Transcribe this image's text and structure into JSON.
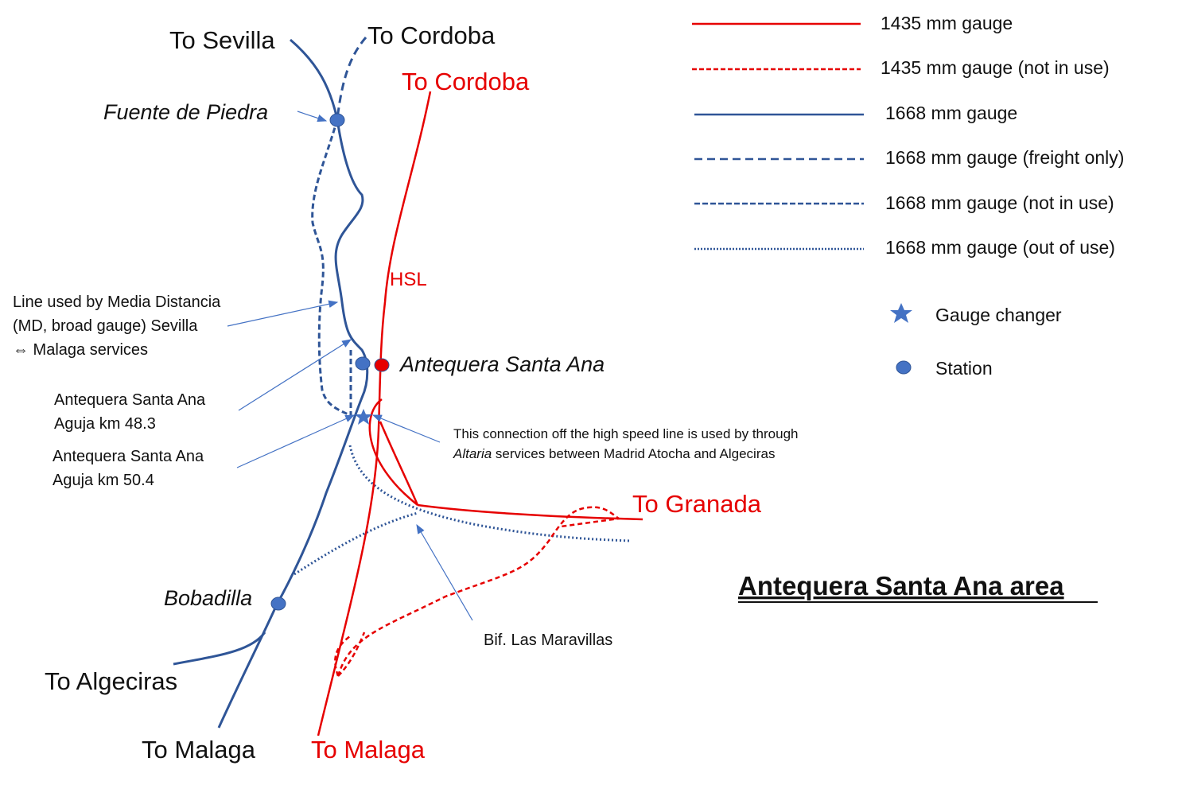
{
  "title": "Antequera Santa Ana area",
  "legend": {
    "lines": [
      "1435 mm gauge",
      "1435 mm gauge (not in use)",
      "1668 mm gauge",
      "1668 mm gauge (freight only)",
      "1668 mm gauge (not in use)",
      "1668 mm gauge (out of use)"
    ],
    "symbols": [
      "Gauge changer",
      "Station"
    ]
  },
  "destinations": {
    "to_sevilla": "To Sevilla",
    "to_cordoba_broad": "To Cordoba",
    "to_cordoba_hsl": "To Cordoba",
    "to_granada": "To Granada",
    "to_algeciras": "To Algeciras",
    "to_malaga_broad": "To Malaga",
    "to_malaga_hsl": "To Malaga"
  },
  "stations": {
    "fuente": "Fuente de Piedra",
    "antequera": "Antequera Santa Ana",
    "bobadilla": "Bobadilla"
  },
  "hsl": "HSL",
  "annotations": {
    "md_line": [
      "Line used by Media Distancia",
      "(MD, broad gauge) Sevilla",
      "⇔ Malaga services"
    ],
    "aguja_48": [
      "Antequera Santa Ana",
      "Aguja km 48.3"
    ],
    "aguja_50": [
      "Antequera Santa Ana",
      "Aguja km 50.4"
    ],
    "connection": {
      "line1": "This connection off the high speed line is used by through",
      "line2_italic": "Altaria",
      "line2_rest": " services between Madrid Atocha and Algeciras"
    },
    "bif": "Bif. Las Maravillas"
  }
}
